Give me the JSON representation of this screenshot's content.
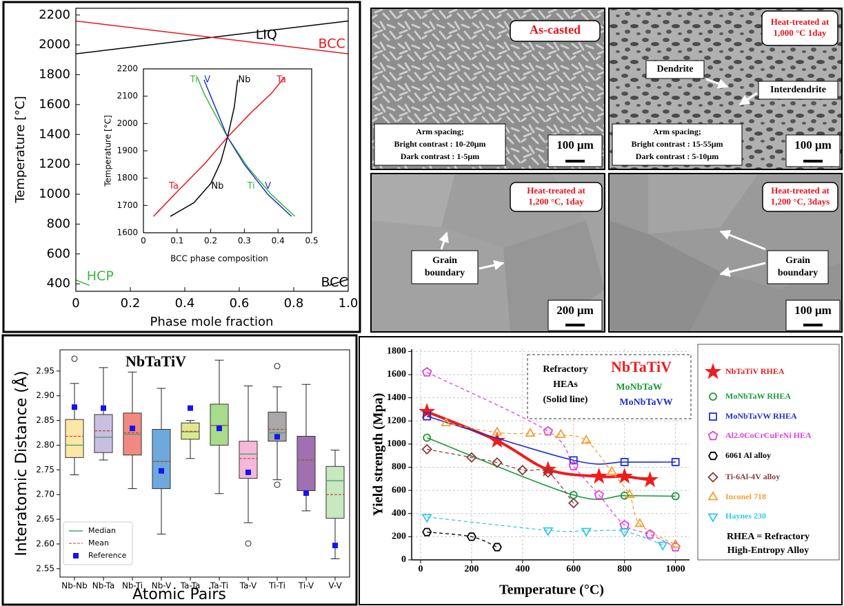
{
  "chart_data": [
    {
      "type": "line",
      "xlabel": "Phase mole fraction",
      "ylabel": "Temperature [°C]",
      "xlim": [
        0,
        1
      ],
      "ylim": [
        350,
        2245
      ],
      "xticks": [
        0,
        0.2,
        0.4,
        0.6,
        0.8,
        {
          "value": 1,
          "label": "1.0"
        }
      ],
      "yticks": [
        400,
        600,
        800,
        1000,
        1200,
        1400,
        1600,
        1800,
        2000,
        2200
      ],
      "series": [
        {
          "name": "LIQ",
          "color": "#000000",
          "x": [
            0,
            1
          ],
          "values": [
            1940,
            2160
          ]
        },
        {
          "name": "BCC",
          "color": "#e8141c",
          "x": [
            0,
            1
          ],
          "values": [
            2160,
            1940
          ]
        },
        {
          "name": "HCP",
          "color": "#3cb43c",
          "x": [
            0,
            0.05
          ],
          "values": [
            425,
            390
          ]
        },
        {
          "name": "BCC",
          "color": "#000000",
          "x": [
            0.93,
            1
          ],
          "values": [
            390,
            430
          ]
        }
      ]
    },
    {
      "type": "line",
      "xlabel": "BCC phase composition",
      "ylabel": "Temperature [°C]",
      "xlim": [
        0,
        0.5
      ],
      "ylim": [
        1600,
        2200
      ],
      "xticks": [
        0,
        0.1,
        0.2,
        0.3,
        0.4,
        0.5
      ],
      "yticks": [
        1600,
        1700,
        1800,
        1900,
        2000,
        2100,
        2200
      ],
      "series": [
        {
          "name": "Ti",
          "color": "#3cb43c",
          "x": [
            0.45,
            0.38,
            0.31,
            0.25,
            0.21,
            0.18,
            0.16
          ],
          "values": [
            1660,
            1740,
            1840,
            1950,
            2040,
            2110,
            2170
          ]
        },
        {
          "name": "V",
          "color": "#2030c8",
          "x": [
            0.44,
            0.37,
            0.3,
            0.25,
            0.22,
            0.2,
            0.18
          ],
          "values": [
            1660,
            1740,
            1850,
            1950,
            2040,
            2100,
            2160
          ]
        },
        {
          "name": "Nb",
          "color": "#000000",
          "x": [
            0.08,
            0.15,
            0.2,
            0.23,
            0.25,
            0.27,
            0.28
          ],
          "values": [
            1660,
            1710,
            1780,
            1860,
            1950,
            2060,
            2160
          ]
        },
        {
          "name": "Ta",
          "color": "#e8141c",
          "x": [
            0.03,
            0.1,
            0.18,
            0.25,
            0.32,
            0.38,
            0.42
          ],
          "values": [
            1660,
            1750,
            1850,
            1950,
            2040,
            2110,
            2170
          ]
        }
      ]
    },
    {
      "type": "box",
      "title": "NbTaTiV",
      "xlabel": "Atomic Pairs",
      "ylabel": "Interatomic Distance (Å)",
      "categories": [
        "Nb-Nb",
        "Nb-Ta",
        "Nb-Ti",
        "Nb-V",
        "Ta-Ta",
        "Ta-Ti",
        "Ta-V",
        "Ti-Ti",
        "Ti-V",
        "V-V"
      ],
      "ylim": [
        2.533,
        2.993
      ],
      "yticks": [
        2.55,
        {
          "value": 2.6,
          "label": "2.60"
        },
        2.65,
        {
          "value": 2.7,
          "label": "2.70"
        },
        2.75,
        {
          "value": 2.8,
          "label": "2.80"
        },
        2.85,
        {
          "value": 2.9,
          "label": "2.90"
        },
        2.95
      ],
      "boxes": [
        {
          "color": "#fbe8a6",
          "whislo": 2.74,
          "q1": 2.775,
          "med": 2.8,
          "q3": 2.852,
          "whishi": 2.925,
          "mean": 2.818,
          "reference": 2.877,
          "fliers": [
            2.975
          ]
        },
        {
          "color": "#c9bfe0",
          "whislo": 2.77,
          "q1": 2.785,
          "med": 2.816,
          "q3": 2.862,
          "whishi": 2.957,
          "mean": 2.829,
          "reference": 2.875
        },
        {
          "color": "#f08a80",
          "whislo": 2.712,
          "q1": 2.78,
          "med": 2.822,
          "q3": 2.865,
          "whishi": 2.948,
          "mean": 2.825,
          "reference": 2.834
        },
        {
          "color": "#6fa8dc",
          "whislo": 2.62,
          "q1": 2.712,
          "med": 2.767,
          "q3": 2.832,
          "whishi": 2.915,
          "mean": 2.767,
          "reference": 2.748
        },
        {
          "color": "#dfe88a",
          "whislo": 2.773,
          "q1": 2.812,
          "med": 2.827,
          "q3": 2.845,
          "whishi": 2.85,
          "mean": 2.828,
          "reference": 2.875
        },
        {
          "color": "#a9dc8a",
          "whislo": 2.702,
          "q1": 2.8,
          "med": 2.84,
          "q3": 2.883,
          "whishi": 2.972,
          "mean": 2.84,
          "reference": 2.834
        },
        {
          "color": "#f5b8d6",
          "whislo": 2.643,
          "q1": 2.733,
          "med": 2.782,
          "q3": 2.808,
          "whishi": 2.92,
          "mean": 2.773,
          "reference": 2.745,
          "fliers": [
            2.601
          ]
        },
        {
          "color": "#a8a8a8",
          "whislo": 2.73,
          "q1": 2.808,
          "med": 2.825,
          "q3": 2.867,
          "whishi": 2.918,
          "mean": 2.832,
          "reference": 2.817,
          "fliers": [
            2.96,
            2.72
          ]
        },
        {
          "color": "#a070b0",
          "whislo": 2.667,
          "q1": 2.708,
          "med": 2.77,
          "q3": 2.818,
          "whishi": 2.923,
          "mean": 2.77,
          "reference": 2.703
        },
        {
          "color": "#c8e8c0",
          "whislo": 2.57,
          "q1": 2.652,
          "med": 2.728,
          "q3": 2.757,
          "whishi": 2.79,
          "mean": 2.7,
          "reference": 2.597
        }
      ],
      "median": {
        "name": "Median",
        "color": "#4d9e7a"
      },
      "mean": {
        "name": "Mean",
        "color": "#c04040"
      },
      "reference": {
        "name": "Reference",
        "color": "#1414f0"
      }
    },
    {
      "type": "line",
      "xlabel": "Temperature (°C)",
      "ylabel": "Yield strength (Mpa)",
      "xlim": [
        -35,
        1055
      ],
      "ylim": [
        0,
        1820
      ],
      "xticks": [
        0,
        200,
        400,
        600,
        800,
        1000
      ],
      "yticks": [
        0,
        200,
        400,
        600,
        800,
        1000,
        1200,
        1400,
        1600,
        1800
      ],
      "grid": true,
      "annotation": [
        "Refractory",
        "HEAs",
        "(Solid line)"
      ],
      "highlights": [
        {
          "text": "NbTaTiV",
          "color": "#ee1c1c"
        },
        {
          "text": "MoNbTaW",
          "color": "#1a9a3a"
        },
        {
          "text": "MoNbTaVW",
          "color": "#1c2fcf"
        }
      ],
      "note": [
        "RHEA = Refractory",
        "High-Entropy Alloy"
      ],
      "series": [
        {
          "name": "NbTaTiV RHEA",
          "color": "#ee1c1c",
          "marker": "star",
          "line_style": "solid",
          "x": [
            25,
            300,
            500,
            700,
            800,
            900
          ],
          "values": [
            1280,
            1030,
            780,
            720,
            720,
            690
          ]
        },
        {
          "name": "MoNbTaW RHEA",
          "color": "#1a9a3a",
          "marker": "circle",
          "line_style": "solid",
          "x": [
            25,
            600,
            800,
            1000
          ],
          "values": [
            1055,
            560,
            555,
            550
          ]
        },
        {
          "name": "MoNbTaVW RHEA",
          "color": "#1c2fcf",
          "marker": "square",
          "line_style": "solid",
          "x": [
            25,
            600,
            800,
            1000
          ],
          "values": [
            1240,
            860,
            845,
            845
          ]
        },
        {
          "name": "Al2.0CoCrCuFeNi HEA",
          "color": "#e040e0",
          "marker": "pentagon",
          "line_style": "dashed",
          "x": [
            25,
            500,
            600,
            700,
            800,
            900,
            1000
          ],
          "values": [
            1620,
            1110,
            810,
            560,
            300,
            220,
            110
          ]
        },
        {
          "name": "6061 Al alloy",
          "color": "#000000",
          "marker": "hexagon",
          "line_style": "dashed",
          "x": [
            25,
            200,
            300
          ],
          "values": [
            240,
            200,
            110
          ]
        },
        {
          "name": "Ti-6Al-4V alloy",
          "color": "#8b3a3a",
          "marker": "diamond",
          "line_style": "dashed",
          "x": [
            25,
            200,
            300,
            400,
            500,
            600
          ],
          "values": [
            955,
            885,
            840,
            775,
            755,
            490
          ]
        },
        {
          "name": "Inconel 718",
          "color": "#f0a030",
          "marker": "triangle-up",
          "line_style": "dashed",
          "x": [
            100,
            300,
            430,
            550,
            650,
            750,
            820,
            860,
            1000
          ],
          "values": [
            1180,
            1100,
            1090,
            1080,
            1030,
            760,
            560,
            310,
            130
          ]
        },
        {
          "name": "Haynes 230",
          "color": "#30c8e8",
          "marker": "triangle-down",
          "line_style": "dashed",
          "x": [
            25,
            500,
            650,
            800,
            950
          ],
          "values": [
            370,
            255,
            250,
            245,
            130
          ]
        }
      ]
    }
  ],
  "micrographs": [
    {
      "label": [
        "As-casted"
      ],
      "notes": [
        "Arm spacing;",
        "Bright contrast : 10-20μm",
        "Dark contrast : 1-5μm"
      ],
      "scale_bar": "100 μm"
    },
    {
      "label": [
        "Heat-treated at",
        "1,000 °C  1day"
      ],
      "notes": [
        "Arm spacing;",
        "Bright contrast : 15-55μm",
        "Dark contrast : 5-10μm"
      ],
      "callouts": [
        [
          "Dendrite"
        ],
        [
          "Interdendrite"
        ]
      ],
      "scale_bar": "100 μm"
    },
    {
      "label": [
        "Heat-treated at",
        "1,200 °C, 1day"
      ],
      "callouts": [
        [
          "Grain",
          "boundary"
        ]
      ],
      "scale_bar": "200 μm"
    },
    {
      "label": [
        "Heat-treated at",
        "1,200 °C, 3days"
      ],
      "callouts": [
        [
          "Grain",
          "boundary"
        ]
      ],
      "scale_bar": "100 μm"
    }
  ]
}
